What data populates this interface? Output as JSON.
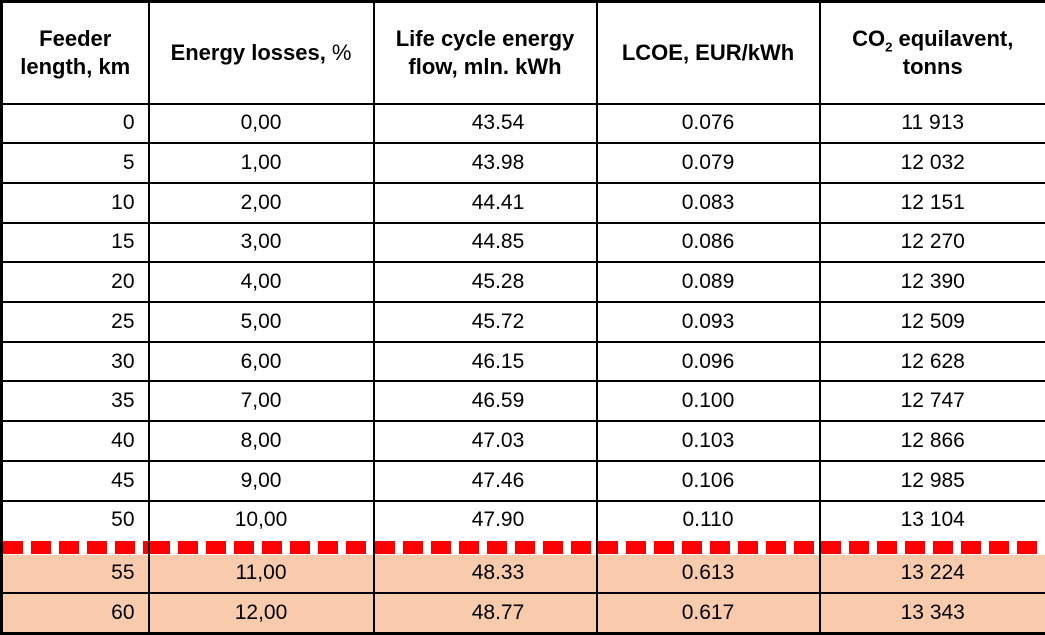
{
  "colors": {
    "highlight_row_background": "#F8CBAD",
    "separator_dash_red": "#FF0000",
    "grid_border": "#000000",
    "background": "#FFFFFF",
    "text": "#000000"
  },
  "table": {
    "headers": {
      "feeder_length": "Feeder length, km",
      "energy_losses_main": "Energy losses,",
      "energy_losses_unit": "%",
      "life_cycle": "Life cycle energy flow, mln. kWh",
      "lcoe": "LCOE, EUR/kWh",
      "co2_prefix": "CO",
      "co2_sub": "2",
      "co2_rest": "equilavent, tonns"
    },
    "column_keys": [
      "feeder-length-km",
      "energy-losses-pct",
      "life-cycle-energy-flow",
      "lcoe-eur-kwh",
      "co2-equivalent-tonns"
    ],
    "rows": [
      {
        "values": [
          "0",
          "0,00",
          "43.54",
          "0.076",
          "11 913"
        ],
        "highlighted": false
      },
      {
        "values": [
          "5",
          "1,00",
          "43.98",
          "0.079",
          "12 032"
        ],
        "highlighted": false
      },
      {
        "values": [
          "10",
          "2,00",
          "44.41",
          "0.083",
          "12 151"
        ],
        "highlighted": false
      },
      {
        "values": [
          "15",
          "3,00",
          "44.85",
          "0.086",
          "12 270"
        ],
        "highlighted": false
      },
      {
        "values": [
          "20",
          "4,00",
          "45.28",
          "0.089",
          "12 390"
        ],
        "highlighted": false
      },
      {
        "values": [
          "25",
          "5,00",
          "45.72",
          "0.093",
          "12 509"
        ],
        "highlighted": false
      },
      {
        "values": [
          "30",
          "6,00",
          "46.15",
          "0.096",
          "12 628"
        ],
        "highlighted": false
      },
      {
        "values": [
          "35",
          "7,00",
          "46.59",
          "0.100",
          "12 747"
        ],
        "highlighted": false
      },
      {
        "values": [
          "40",
          "8,00",
          "47.03",
          "0.103",
          "12 866"
        ],
        "highlighted": false
      },
      {
        "values": [
          "45",
          "9,00",
          "47.46",
          "0.106",
          "12 985"
        ],
        "highlighted": false
      },
      {
        "values": [
          "50",
          "10,00",
          "47.90",
          "0.110",
          "13 104"
        ],
        "highlighted": false
      },
      {
        "values": [
          "55",
          "11,00",
          "48.33",
          "0.613",
          "13 224"
        ],
        "highlighted": true
      },
      {
        "values": [
          "60",
          "12,00",
          "48.77",
          "0.617",
          "13 343"
        ],
        "highlighted": true
      }
    ],
    "separator": {
      "after_row_index": 10,
      "after_feeder_length_value": "50",
      "style": "red-dashed-horizontal-line"
    }
  },
  "chart_data": {
    "type": "table",
    "title": "",
    "columns": [
      "Feeder length, km",
      "Energy losses, %",
      "Life cycle energy flow, mln. kWh",
      "LCOE, EUR/kWh",
      "CO2 equilavent, tonns"
    ],
    "rows": [
      [
        "0",
        "0,00",
        "43.54",
        "0.076",
        "11 913"
      ],
      [
        "5",
        "1,00",
        "43.98",
        "0.079",
        "12 032"
      ],
      [
        "10",
        "2,00",
        "44.41",
        "0.083",
        "12 151"
      ],
      [
        "15",
        "3,00",
        "44.85",
        "0.086",
        "12 270"
      ],
      [
        "20",
        "4,00",
        "45.28",
        "0.089",
        "12 390"
      ],
      [
        "25",
        "5,00",
        "45.72",
        "0.093",
        "12 509"
      ],
      [
        "30",
        "6,00",
        "46.15",
        "0.096",
        "12 628"
      ],
      [
        "35",
        "7,00",
        "46.59",
        "0.100",
        "12 747"
      ],
      [
        "40",
        "8,00",
        "47.03",
        "0.103",
        "12 866"
      ],
      [
        "45",
        "9,00",
        "47.46",
        "0.106",
        "12 985"
      ],
      [
        "50",
        "10,00",
        "47.90",
        "0.110",
        "13 104"
      ],
      [
        "55",
        "11,00",
        "48.33",
        "0.613",
        "13 224"
      ],
      [
        "60",
        "12,00",
        "48.77",
        "0.617",
        "13 343"
      ]
    ],
    "highlighted_row_indices": [
      11,
      12
    ],
    "separator_after_row_index": 10
  }
}
